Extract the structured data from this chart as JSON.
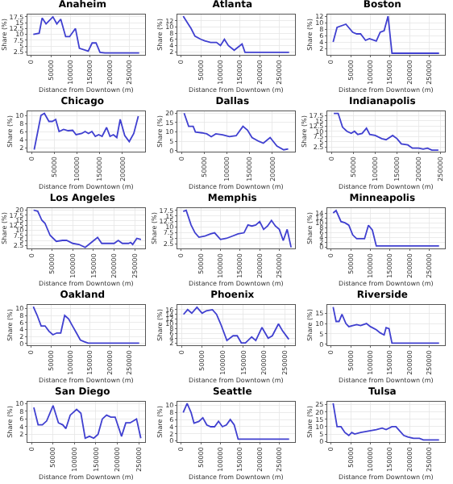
{
  "chart_data": [
    {
      "type": "line",
      "title": "Anaheim",
      "xlabel": "Distance from Downtown (m)",
      "ylabel": "Share (%)",
      "color": "#4040d0",
      "grid": true,
      "xlim": [
        -10000,
        290000
      ],
      "xticks": [
        0,
        50000,
        100000,
        150000,
        200000,
        250000
      ],
      "ylim": [
        1.2,
        18.5
      ],
      "yticks": [
        2.5,
        5.0,
        7.5,
        10.0,
        12.5,
        15.0,
        17.5
      ],
      "x": [
        5000,
        20000,
        27500,
        37500,
        55000,
        65000,
        75000,
        87500,
        97500,
        112500,
        122500,
        145000,
        155000,
        165000,
        175000,
        187500,
        275000
      ],
      "values": [
        10,
        10.5,
        17,
        14.5,
        17.5,
        14.5,
        16.5,
        9,
        9,
        12.5,
        4,
        2.8,
        6.3,
        6.3,
        2.3,
        2,
        2
      ]
    },
    {
      "type": "line",
      "title": "Atlanta",
      "xlabel": "Distance from Downtown (m)",
      "ylabel": "Share (%)",
      "color": "#4040d0",
      "grid": true,
      "xlim": [
        -10000,
        290000
      ],
      "xticks": [
        0,
        50000,
        100000,
        150000,
        200000,
        250000
      ],
      "ylim": [
        1,
        14
      ],
      "yticks": [
        2,
        4,
        6,
        8,
        10,
        12
      ],
      "x": [
        5000,
        20000,
        25000,
        35000,
        50000,
        60000,
        75000,
        90000,
        100000,
        110000,
        120000,
        135000,
        155000,
        162500,
        275000
      ],
      "values": [
        13.5,
        10.5,
        9.5,
        7,
        6,
        5.5,
        5,
        5,
        4,
        6,
        4,
        2.5,
        4.5,
        1.8,
        1.8
      ]
    },
    {
      "type": "line",
      "title": "Boston",
      "xlabel": "Distance from Downtown (m)",
      "ylabel": "Share (%)",
      "color": "#4040d0",
      "grid": true,
      "xlim": [
        -10000,
        290000
      ],
      "xticks": [
        0,
        50000,
        100000,
        150000,
        200000,
        250000
      ],
      "ylim": [
        0,
        12.5
      ],
      "yticks": [
        2,
        4,
        6,
        8,
        10,
        12
      ],
      "x": [
        5000,
        15000,
        37500,
        55000,
        65000,
        75000,
        87500,
        97500,
        115000,
        125000,
        135000,
        145000,
        155000,
        275000
      ],
      "values": [
        4,
        8.5,
        9.5,
        7,
        6.5,
        6.5,
        4.5,
        5,
        4.3,
        7,
        7.5,
        12,
        0.5,
        0.5
      ]
    },
    {
      "type": "line",
      "title": "Chicago",
      "xlabel": "Distance from Downtown (m)",
      "ylabel": "Share (%)",
      "color": "#4040d0",
      "grid": true,
      "xlim": [
        -10000,
        250000
      ],
      "xticks": [
        0,
        50000,
        100000,
        150000,
        200000
      ],
      "ylim": [
        1,
        11
      ],
      "yticks": [
        2,
        4,
        6,
        8,
        10
      ],
      "x": [
        5000,
        20000,
        27500,
        37500,
        45000,
        52500,
        60000,
        70000,
        80000,
        90000,
        97500,
        110000,
        117500,
        125000,
        132500,
        140000,
        147500,
        155000,
        165000,
        172500,
        180000,
        187500,
        195000,
        205000,
        215000,
        225000,
        235000
      ],
      "values": [
        1.5,
        10,
        10.5,
        8.5,
        8.5,
        9,
        6,
        6.5,
        6.2,
        6.3,
        5.2,
        5.5,
        6,
        5.5,
        6,
        4.8,
        5.2,
        4.8,
        7,
        4.8,
        5.2,
        4.5,
        9,
        5,
        3.5,
        5.5,
        9.8
      ]
    },
    {
      "type": "line",
      "title": "Dallas",
      "xlabel": "Distance from Downtown (m)",
      "ylabel": "Share (%)",
      "color": "#4040d0",
      "grid": true,
      "xlim": [
        -10000,
        250000
      ],
      "xticks": [
        0,
        50000,
        100000,
        150000,
        200000
      ],
      "ylim": [
        -0.5,
        21
      ],
      "yticks": [
        0,
        5,
        10,
        15,
        20
      ],
      "x": [
        5000,
        15000,
        25000,
        30000,
        45000,
        55000,
        65000,
        75000,
        90000,
        105000,
        120000,
        135000,
        145000,
        155000,
        170000,
        180000,
        195000,
        210000,
        225000,
        235000
      ],
      "values": [
        20,
        13,
        13,
        10,
        9.5,
        9,
        7.5,
        9,
        8.5,
        7.5,
        8,
        13,
        11,
        7,
        5,
        4,
        7,
        2.5,
        0.5,
        1
      ]
    },
    {
      "type": "line",
      "title": "Indianapolis",
      "xlabel": "Distance from Downtown (m)",
      "ylabel": "Share (%)",
      "color": "#4040d0",
      "grid": true,
      "xlim": [
        -10000,
        260000
      ],
      "xticks": [
        0,
        50000,
        100000,
        150000,
        200000,
        250000
      ],
      "ylim": [
        0.3,
        19.5
      ],
      "yticks": [
        2.5,
        5.0,
        7.5,
        10.0,
        12.5,
        15.0,
        17.5
      ],
      "x": [
        5000,
        15000,
        25000,
        35000,
        45000,
        52500,
        60000,
        70000,
        80000,
        87500,
        100000,
        115000,
        125000,
        140000,
        150000,
        160000,
        175000,
        185000,
        200000,
        210000,
        220000,
        230000,
        245000
      ],
      "values": [
        18.5,
        18.5,
        12,
        10,
        9,
        10,
        8.5,
        9,
        11.5,
        8.5,
        8,
        6.5,
        6,
        8,
        6.5,
        4,
        3.5,
        2,
        2,
        1.5,
        2,
        1,
        1
      ]
    },
    {
      "type": "line",
      "title": "Los Angeles",
      "xlabel": "Distance from Downtown (m)",
      "ylabel": "Share (%)",
      "color": "#4040d0",
      "grid": true,
      "xlim": [
        -10000,
        275000
      ],
      "xticks": [
        0,
        50000,
        100000,
        150000,
        200000,
        250000
      ],
      "ylim": [
        1,
        21
      ],
      "yticks": [
        2.5,
        5.0,
        7.5,
        10.0,
        12.5,
        15.0,
        17.5,
        20.0
      ],
      "x": [
        5000,
        15000,
        25000,
        32500,
        45000,
        60000,
        75000,
        85000,
        100000,
        115000,
        130000,
        145000,
        160000,
        170000,
        185000,
        200000,
        210000,
        220000,
        235000,
        240000,
        245000,
        255000,
        265000
      ],
      "values": [
        20,
        19.5,
        15,
        13.5,
        7.5,
        4.5,
        5,
        5,
        3.5,
        3,
        1.5,
        4,
        6.5,
        3.5,
        3.5,
        3.5,
        5,
        3.5,
        3.5,
        4,
        3,
        6,
        5.5
      ]
    },
    {
      "type": "line",
      "title": "Memphis",
      "xlabel": "Distance from Downtown (m)",
      "ylabel": "Share (%)",
      "color": "#4040d0",
      "grid": true,
      "xlim": [
        -10000,
        290000
      ],
      "xticks": [
        0,
        50000,
        100000,
        150000,
        200000,
        250000
      ],
      "ylim": [
        0.5,
        18.5
      ],
      "yticks": [
        2.5,
        5.0,
        7.5,
        10.0,
        12.5,
        15.0,
        17.5
      ],
      "x": [
        5000,
        12500,
        25000,
        35000,
        45000,
        60000,
        75000,
        85000,
        100000,
        115000,
        130000,
        145000,
        160000,
        170000,
        180000,
        190000,
        200000,
        210000,
        220000,
        230000,
        240000,
        250000,
        260000,
        270000,
        280000
      ],
      "values": [
        17,
        17.5,
        11,
        7.5,
        5.5,
        6,
        7,
        7.5,
        4.5,
        5,
        6,
        7,
        7.5,
        11,
        10.5,
        11,
        12.5,
        9,
        10.5,
        13,
        10.5,
        9,
        4,
        9,
        1
      ]
    },
    {
      "type": "line",
      "title": "Minneapolis",
      "xlabel": "Distance from Downtown (m)",
      "ylabel": "Share (%)",
      "color": "#4040d0",
      "grid": true,
      "xlim": [
        -10000,
        290000
      ],
      "xticks": [
        0,
        50000,
        100000,
        150000,
        200000,
        250000
      ],
      "ylim": [
        -0.5,
        16
      ],
      "yticks": [
        0,
        2,
        4,
        6,
        8,
        10,
        12,
        14
      ],
      "x": [
        5000,
        12500,
        25000,
        35000,
        45000,
        55000,
        65000,
        75000,
        85000,
        95000,
        105000,
        115000,
        275000
      ],
      "values": [
        14,
        15,
        10.5,
        10,
        9,
        5,
        3.5,
        3.5,
        3.5,
        9,
        7,
        0.5,
        0.5
      ]
    },
    {
      "type": "line",
      "title": "Oakland",
      "xlabel": "Distance from Downtown (m)",
      "ylabel": "Share (%)",
      "color": "#4040d0",
      "grid": true,
      "xlim": [
        -10000,
        290000
      ],
      "xticks": [
        0,
        50000,
        100000,
        150000,
        200000,
        250000
      ],
      "ylim": [
        -0.5,
        11
      ],
      "yticks": [
        0,
        2,
        4,
        6,
        8,
        10
      ],
      "x": [
        5000,
        15000,
        25000,
        35000,
        45000,
        55000,
        65000,
        75000,
        85000,
        95000,
        105000,
        115000,
        125000,
        135000,
        145000,
        275000
      ],
      "values": [
        10.5,
        8,
        5,
        5,
        3.5,
        2.5,
        3,
        3,
        8,
        7,
        5,
        3,
        1,
        0.5,
        0.1,
        0.1
      ]
    },
    {
      "type": "line",
      "title": "Phoenix",
      "xlabel": "Distance from Downtown (m)",
      "ylabel": "Share (%)",
      "color": "#4040d0",
      "grid": true,
      "xlim": [
        -10000,
        275000
      ],
      "xticks": [
        0,
        50000,
        100000,
        150000,
        200000,
        250000
      ],
      "ylim": [
        1,
        18
      ],
      "yticks": [
        2,
        4,
        6,
        8,
        10,
        12,
        14,
        16
      ],
      "x": [
        5000,
        15000,
        25000,
        37500,
        50000,
        60000,
        75000,
        85000,
        95000,
        110000,
        125000,
        135000,
        145000,
        155000,
        170000,
        180000,
        195000,
        210000,
        220000,
        235000,
        245000,
        260000
      ],
      "values": [
        14,
        16,
        14.5,
        17,
        14.5,
        15.5,
        16,
        14,
        10,
        3,
        5,
        5,
        2,
        2,
        4.5,
        3,
        8.5,
        4,
        5,
        10,
        7,
        3.5
      ]
    },
    {
      "type": "line",
      "title": "Riverside",
      "xlabel": "Distance from Downtown (m)",
      "ylabel": "Share (%)",
      "color": "#4040d0",
      "grid": true,
      "xlim": [
        -10000,
        290000
      ],
      "xticks": [
        0,
        50000,
        100000,
        150000,
        200000,
        250000
      ],
      "ylim": [
        -0.5,
        19
      ],
      "yticks": [
        0,
        5,
        10,
        15
      ],
      "x": [
        5000,
        12500,
        20000,
        27500,
        37500,
        45000,
        55000,
        65000,
        75000,
        90000,
        100000,
        115000,
        125000,
        135000,
        140000,
        147500,
        155000,
        275000
      ],
      "values": [
        18,
        11,
        11,
        14.5,
        10,
        8.5,
        9,
        9.5,
        9,
        10,
        8.5,
        7,
        5.5,
        4.5,
        8,
        7.5,
        0.5,
        0.5
      ]
    },
    {
      "type": "line",
      "title": "San Diego",
      "xlabel": "Distance from Downtown (m)",
      "ylabel": "Share (%)",
      "color": "#4040d0",
      "grid": true,
      "xlim": [
        -10000,
        265000
      ],
      "xticks": [
        0,
        50000,
        100000,
        150000,
        200000,
        250000
      ],
      "ylim": [
        0,
        10.5
      ],
      "yticks": [
        2,
        4,
        6,
        8,
        10
      ],
      "x": [
        5000,
        15000,
        25000,
        35000,
        50000,
        62500,
        72500,
        80000,
        90000,
        105000,
        115000,
        125000,
        135000,
        145000,
        155000,
        165000,
        175000,
        185000,
        195000,
        210000,
        220000,
        230000,
        245000,
        255000
      ],
      "values": [
        9,
        4.5,
        4.5,
        5.5,
        9.5,
        5,
        4.5,
        3.5,
        7,
        8.5,
        7.5,
        1,
        1.5,
        1,
        2,
        6,
        7,
        6.5,
        6.5,
        1.5,
        5,
        5,
        6,
        1
      ]
    },
    {
      "type": "line",
      "title": "Seattle",
      "xlabel": "Distance from Downtown (m)",
      "ylabel": "Share (%)",
      "color": "#4040d0",
      "grid": true,
      "xlim": [
        -10000,
        290000
      ],
      "xticks": [
        0,
        50000,
        100000,
        150000,
        200000,
        250000
      ],
      "ylim": [
        -0.3,
        11
      ],
      "yticks": [
        0,
        2,
        4,
        6,
        8,
        10
      ],
      "x": [
        5000,
        15000,
        25000,
        32500,
        45000,
        55000,
        65000,
        75000,
        85000,
        95000,
        105000,
        115000,
        125000,
        135000,
        145000,
        275000
      ],
      "values": [
        8,
        10.5,
        8,
        5,
        5.5,
        6.5,
        4.5,
        4,
        4,
        5.5,
        4,
        4.5,
        6,
        4.5,
        0.5,
        0.5
      ]
    },
    {
      "type": "line",
      "title": "Tulsa",
      "xlabel": "Distance from Downtown (m)",
      "ylabel": "Share (%)",
      "color": "#4040d0",
      "grid": true,
      "xlim": [
        -10000,
        290000
      ],
      "xticks": [
        0,
        50000,
        100000,
        150000,
        200000,
        250000
      ],
      "ylim": [
        -0.5,
        27
      ],
      "yticks": [
        0,
        5,
        10,
        15,
        20,
        25
      ],
      "x": [
        5000,
        15000,
        25000,
        35000,
        45000,
        52500,
        60000,
        75000,
        95000,
        115000,
        130000,
        140000,
        155000,
        165000,
        175000,
        185000,
        195000,
        210000,
        225000,
        235000,
        275000
      ],
      "values": [
        26,
        10,
        10,
        6,
        4,
        6,
        5,
        6,
        7,
        8,
        9,
        8,
        10,
        10,
        7,
        4,
        3,
        2,
        2,
        1,
        1
      ]
    }
  ]
}
